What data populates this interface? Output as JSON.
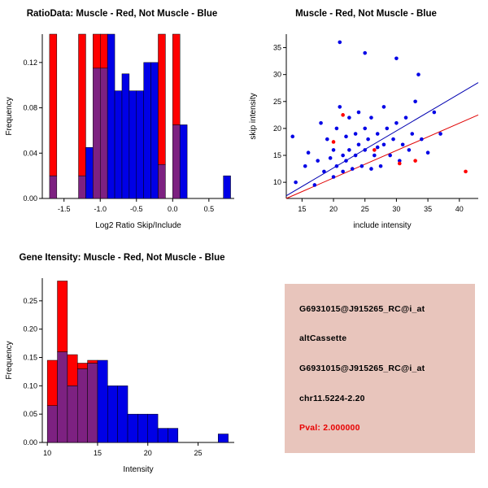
{
  "window": {
    "background": "#ffffff"
  },
  "chart_data": [
    {
      "id": "ratio-hist",
      "svg": "ratio-histogram-svg",
      "type": "bar",
      "subtype": "overlaid-histogram",
      "title": "RatioData: Muscle - Red, Not Muscle - Blue",
      "xlabel": "Log2 Ratio Skip/Include",
      "ylabel": "Frequency",
      "xlim": [
        -1.8,
        0.85
      ],
      "ylim": [
        0,
        0.145
      ],
      "xticks": [
        {
          "v": -1.5,
          "label": "-1.5"
        },
        {
          "v": -1.0,
          "label": "-1.0"
        },
        {
          "v": -0.5,
          "label": "-0.5"
        },
        {
          "v": 0.0,
          "label": "0.0"
        },
        {
          "v": 0.5,
          "label": "0.5"
        }
      ],
      "yticks": [
        {
          "v": 0,
          "label": "0.00"
        },
        {
          "v": 0.04,
          "label": "0.04"
        },
        {
          "v": 0.08,
          "label": "0.08"
        },
        {
          "v": 0.12,
          "label": "0.12"
        }
      ],
      "bin_width": 0.1,
      "bins": [
        -1.7,
        -1.6,
        -1.5,
        -1.4,
        -1.3,
        -1.2,
        -1.1,
        -1.0,
        -0.9,
        -0.8,
        -0.7,
        -0.6,
        -0.5,
        -0.4,
        -0.3,
        -0.2,
        -0.1,
        0.0,
        0.1,
        0.2,
        0.3,
        0.4,
        0.5,
        0.6,
        0.7
      ],
      "red": [
        0.145,
        0,
        0,
        0,
        0.145,
        0,
        0.145,
        0.145,
        0,
        0,
        0,
        0,
        0,
        0,
        0,
        0.145,
        0,
        0.145,
        0,
        0,
        0,
        0,
        0,
        0,
        0
      ],
      "blue": [
        0.02,
        0,
        0,
        0,
        0.02,
        0.045,
        0.115,
        0.115,
        0.145,
        0.095,
        0.11,
        0.095,
        0.095,
        0.12,
        0.12,
        0.03,
        0,
        0.065,
        0.065,
        0,
        0,
        0,
        0,
        0,
        0.02
      ],
      "legend": {
        "red": "Muscle",
        "blue": "Not Muscle"
      },
      "colors": {
        "red": "#ff0000",
        "blue": "#0000e6",
        "overlap": "#7d2181"
      }
    },
    {
      "id": "intensity-scatter",
      "svg": "intensity-scatter-svg",
      "type": "scatter",
      "title": "Muscle - Red, Not Muscle - Blue",
      "xlabel": "include intensity",
      "ylabel": "skip intensity",
      "xlim": [
        12.5,
        43
      ],
      "ylim": [
        7,
        37.5
      ],
      "xticks": [
        {
          "v": 15,
          "label": "15"
        },
        {
          "v": 20,
          "label": "20"
        },
        {
          "v": 25,
          "label": "25"
        },
        {
          "v": 30,
          "label": "30"
        },
        {
          "v": 35,
          "label": "35"
        },
        {
          "v": 40,
          "label": "40"
        }
      ],
      "yticks": [
        {
          "v": 10,
          "label": "10"
        },
        {
          "v": 15,
          "label": "15"
        },
        {
          "v": 20,
          "label": "20"
        },
        {
          "v": 25,
          "label": "25"
        },
        {
          "v": 30,
          "label": "30"
        },
        {
          "v": 35,
          "label": "35"
        }
      ],
      "lines": [
        {
          "name": "not-muscle-fit",
          "color": "#0000b0",
          "x1": 12.5,
          "y1": 7.5,
          "x2": 43,
          "y2": 28.5
        },
        {
          "name": "muscle-fit",
          "color": "#e00000",
          "x1": 12.5,
          "y1": 7.0,
          "x2": 43,
          "y2": 22.5
        }
      ],
      "series": [
        {
          "name": "Not Muscle",
          "color": "#0000e6",
          "points": [
            [
              13.5,
              18.5
            ],
            [
              14,
              10
            ],
            [
              15.5,
              13
            ],
            [
              16,
              15.5
            ],
            [
              17,
              9.5
            ],
            [
              17.5,
              14
            ],
            [
              18,
              21
            ],
            [
              18.5,
              12
            ],
            [
              19,
              18
            ],
            [
              19.5,
              14.5
            ],
            [
              20,
              11
            ],
            [
              20,
              16
            ],
            [
              20.5,
              13
            ],
            [
              20.5,
              20
            ],
            [
              21,
              36
            ],
            [
              21,
              24
            ],
            [
              21.5,
              15
            ],
            [
              21.5,
              12
            ],
            [
              22,
              18.5
            ],
            [
              22,
              14
            ],
            [
              22.5,
              22
            ],
            [
              22.5,
              16
            ],
            [
              23,
              12.5
            ],
            [
              23.5,
              19
            ],
            [
              23.5,
              15
            ],
            [
              24,
              23
            ],
            [
              24,
              17
            ],
            [
              24.5,
              13
            ],
            [
              25,
              34
            ],
            [
              25,
              20
            ],
            [
              25,
              16
            ],
            [
              25.5,
              18
            ],
            [
              26,
              12.5
            ],
            [
              26,
              22
            ],
            [
              26.5,
              15
            ],
            [
              27,
              19
            ],
            [
              27,
              16.5
            ],
            [
              27.5,
              13
            ],
            [
              28,
              24
            ],
            [
              28,
              17
            ],
            [
              28.5,
              20
            ],
            [
              29,
              15
            ],
            [
              29.5,
              18
            ],
            [
              30,
              33
            ],
            [
              30,
              21
            ],
            [
              30.5,
              14
            ],
            [
              31,
              17
            ],
            [
              31.5,
              22
            ],
            [
              32,
              16
            ],
            [
              32.5,
              19
            ],
            [
              33,
              25
            ],
            [
              33.5,
              30
            ],
            [
              34,
              18
            ],
            [
              35,
              15.5
            ],
            [
              36,
              23
            ],
            [
              37,
              19
            ]
          ]
        },
        {
          "name": "Muscle",
          "color": "#ff0000",
          "points": [
            [
              20,
              17.5
            ],
            [
              21.5,
              22.5
            ],
            [
              26.5,
              16
            ],
            [
              30.5,
              13.5
            ],
            [
              33,
              14
            ],
            [
              41,
              12
            ]
          ]
        }
      ]
    },
    {
      "id": "gene-hist",
      "svg": "gene-histogram-svg",
      "type": "bar",
      "subtype": "overlaid-histogram",
      "title": "Gene Itensity: Muscle - Red, Not Muscle - Blue",
      "xlabel": "Intensity",
      "ylabel": "Frequency",
      "xlim": [
        9.5,
        28.6
      ],
      "ylim": [
        0,
        0.29
      ],
      "xticks": [
        {
          "v": 10,
          "label": "10"
        },
        {
          "v": 15,
          "label": "15"
        },
        {
          "v": 20,
          "label": "20"
        },
        {
          "v": 25,
          "label": "25"
        }
      ],
      "yticks": [
        {
          "v": 0,
          "label": "0.00"
        },
        {
          "v": 0.05,
          "label": "0.05"
        },
        {
          "v": 0.1,
          "label": "0.10"
        },
        {
          "v": 0.15,
          "label": "0.15"
        },
        {
          "v": 0.2,
          "label": "0.20"
        },
        {
          "v": 0.25,
          "label": "0.25"
        }
      ],
      "bin_width": 1,
      "bins": [
        10,
        11,
        12,
        13,
        14,
        15,
        16,
        17,
        18,
        19,
        20,
        21,
        22,
        23,
        24,
        25,
        26,
        27
      ],
      "red": [
        0.145,
        0.285,
        0.155,
        0.14,
        0.145,
        0,
        0,
        0,
        0,
        0,
        0,
        0,
        0,
        0,
        0,
        0,
        0,
        0
      ],
      "blue": [
        0.065,
        0.16,
        0.1,
        0.13,
        0.14,
        0.145,
        0.1,
        0.1,
        0.05,
        0.05,
        0.05,
        0.025,
        0.025,
        0,
        0,
        0,
        0,
        0.015
      ],
      "legend": {
        "red": "Muscle",
        "blue": "Not Muscle"
      },
      "colors": {
        "red": "#ff0000",
        "blue": "#0000e6",
        "overlap": "#7d2181"
      }
    }
  ],
  "info_panel": {
    "background": "#e8c5bc",
    "lines": [
      {
        "text": "G6931015@J915265_RC@i_at",
        "color": "#000000"
      },
      {
        "text": "altCassette",
        "color": "#000000"
      },
      {
        "text": "G6931015@J915265_RC@i_at",
        "color": "#000000"
      },
      {
        "text": "chr11.5224-2.20",
        "color": "#000000"
      },
      {
        "text": "Pval: 2.000000",
        "color": "#e80000"
      }
    ]
  }
}
